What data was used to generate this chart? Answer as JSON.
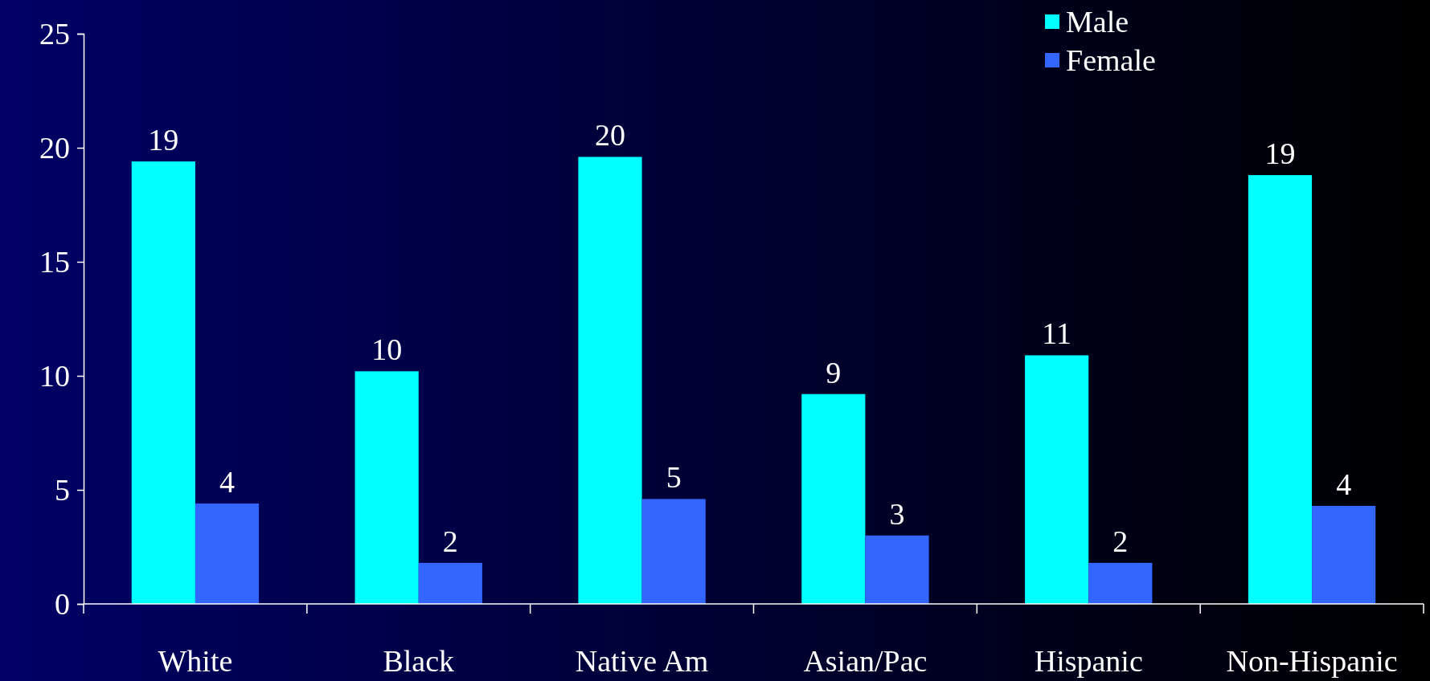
{
  "chart_data": {
    "type": "bar",
    "categories": [
      "White",
      "Black",
      "Native Am",
      "Asian/Pac",
      "Hispanic",
      "Non-Hispanic"
    ],
    "series": [
      {
        "name": "Male",
        "color": "#00ffff",
        "values": [
          19.4,
          10.2,
          19.6,
          9.2,
          10.9,
          18.8
        ],
        "value_labels": [
          "19",
          "10",
          "20",
          "9",
          "11",
          "19"
        ]
      },
      {
        "name": "Female",
        "color": "#3366ff",
        "values": [
          4.4,
          1.8,
          4.6,
          3.0,
          1.8,
          4.3
        ],
        "value_labels": [
          "4",
          "2",
          "5",
          "3",
          "2",
          "4"
        ]
      }
    ],
    "ylim": [
      0,
      25
    ],
    "yticks": [
      0,
      5,
      10,
      15,
      20,
      25
    ],
    "grid": false,
    "legend": "top right"
  }
}
